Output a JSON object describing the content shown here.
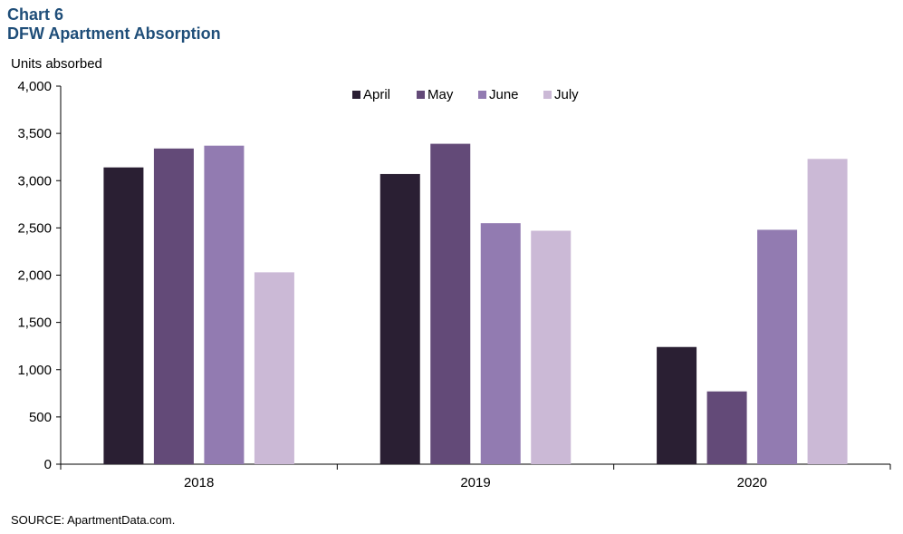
{
  "header": {
    "chart_number": "Chart 6",
    "title": "DFW Apartment Absorption"
  },
  "footer": {
    "source": "SOURCE:  ApartmentData.com."
  },
  "chart_data": {
    "type": "bar",
    "title": "DFW Apartment Absorption",
    "ylabel": "Units absorbed",
    "xlabel": "",
    "categories": [
      "2018",
      "2019",
      "2020"
    ],
    "ylim": [
      0,
      4000
    ],
    "yticks": [
      0,
      500,
      1000,
      1500,
      2000,
      2500,
      3000,
      3500,
      4000
    ],
    "ytick_labels": [
      "0",
      "500",
      "1,000",
      "1,500",
      "2,000",
      "2,500",
      "3,000",
      "3,500",
      "4,000"
    ],
    "grid": false,
    "legend_position": "top-center",
    "series": [
      {
        "name": "April",
        "color": "#2a1f33",
        "values": [
          3140,
          3070,
          1240
        ]
      },
      {
        "name": "May",
        "color": "#634a78",
        "values": [
          3340,
          3390,
          770
        ]
      },
      {
        "name": "June",
        "color": "#927bb1",
        "values": [
          3370,
          2550,
          2480
        ]
      },
      {
        "name": "July",
        "color": "#cbb9d6",
        "values": [
          2030,
          2470,
          3230
        ]
      }
    ]
  }
}
